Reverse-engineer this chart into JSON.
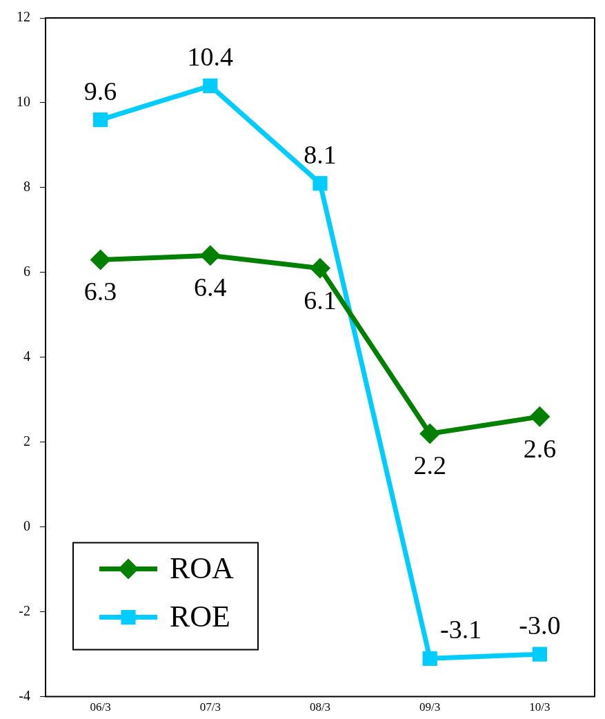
{
  "chart_data": {
    "type": "line",
    "categories": [
      "06/3",
      "07/3",
      "08/3",
      "09/3",
      "10/3"
    ],
    "series": [
      {
        "name": "ROA",
        "color": "#008000",
        "marker": "diamond",
        "values": [
          6.3,
          6.4,
          6.1,
          2.2,
          2.6
        ],
        "value_labels": [
          "6.3",
          "6.4",
          "6.1",
          "2.2",
          "2.6"
        ]
      },
      {
        "name": "ROE",
        "color": "#00ccff",
        "marker": "square",
        "values": [
          9.6,
          10.4,
          8.1,
          -3.1,
          -3.0
        ],
        "value_labels": [
          "9.6",
          "10.4",
          "8.1",
          "-3.1",
          "-3.0"
        ]
      }
    ],
    "ylim": [
      -4,
      12
    ],
    "yticks": [
      -4,
      -2,
      0,
      2,
      4,
      6,
      8,
      10,
      12
    ],
    "grid": false,
    "legend": "bottom left",
    "line_style": "solid"
  }
}
